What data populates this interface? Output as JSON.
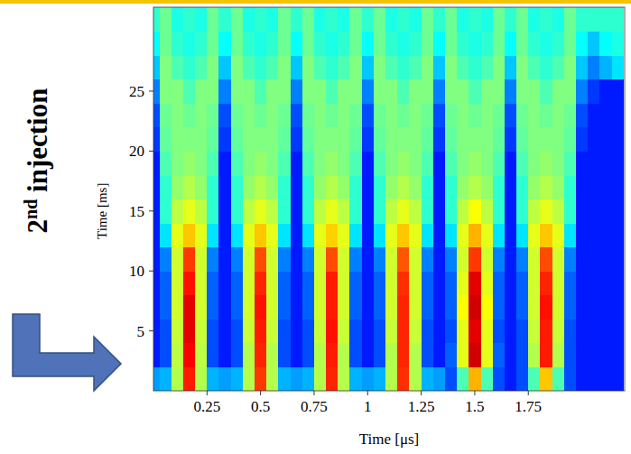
{
  "chart_data": {
    "type": "heatmap",
    "x_label": "Time [μs]",
    "y_label": "Time [ms]",
    "annotation": "2nd injection",
    "xlim": [
      0,
      2.2
    ],
    "ylim": [
      0,
      32
    ],
    "xticks": [
      0.25,
      0.5,
      0.75,
      1,
      1.25,
      1.5,
      1.75
    ],
    "yticks": [
      5,
      10,
      15,
      20,
      25
    ],
    "zlim": [
      0,
      1
    ],
    "x": [
      0,
      0.056,
      0.111,
      0.167,
      0.222,
      0.278,
      0.333,
      0.389,
      0.444,
      0.5,
      0.556,
      0.611,
      0.667,
      0.722,
      0.778,
      0.833,
      0.889,
      0.944,
      1,
      1.056,
      1.111,
      1.167,
      1.222,
      1.278,
      1.333,
      1.389,
      1.444,
      1.5,
      1.556,
      1.611,
      1.667,
      1.722,
      1.778,
      1.833,
      1.889,
      1.944,
      2,
      2.056,
      2.111,
      2.167
    ],
    "y": [
      1,
      3,
      5,
      7,
      9,
      11,
      13,
      15,
      17,
      19,
      21,
      23,
      25,
      27,
      29,
      31
    ],
    "values": [
      [
        0.28,
        0.3,
        0.55,
        0.85,
        0.55,
        0.3,
        0.28,
        0.3,
        0.55,
        0.82,
        0.55,
        0.3,
        0.28,
        0.3,
        0.55,
        0.84,
        0.55,
        0.3,
        0.28,
        0.3,
        0.55,
        0.83,
        0.55,
        0.3,
        0.28,
        0.2,
        0.45,
        0.7,
        0.45,
        0.2,
        0.15,
        0.2,
        0.45,
        0.68,
        0.45,
        0.2,
        0.15,
        0.15,
        0.15,
        0.15
      ],
      [
        0.15,
        0.2,
        0.56,
        0.88,
        0.56,
        0.2,
        0.15,
        0.2,
        0.55,
        0.84,
        0.55,
        0.2,
        0.15,
        0.2,
        0.55,
        0.85,
        0.55,
        0.2,
        0.15,
        0.2,
        0.55,
        0.84,
        0.55,
        0.2,
        0.15,
        0.22,
        0.6,
        0.92,
        0.6,
        0.22,
        0.15,
        0.2,
        0.55,
        0.85,
        0.55,
        0.2,
        0.15,
        0.15,
        0.15,
        0.15
      ],
      [
        0.15,
        0.2,
        0.57,
        0.9,
        0.57,
        0.2,
        0.15,
        0.2,
        0.57,
        0.85,
        0.57,
        0.2,
        0.15,
        0.2,
        0.57,
        0.86,
        0.57,
        0.2,
        0.15,
        0.2,
        0.57,
        0.84,
        0.57,
        0.2,
        0.15,
        0.2,
        0.6,
        0.9,
        0.6,
        0.2,
        0.15,
        0.2,
        0.57,
        0.85,
        0.57,
        0.2,
        0.15,
        0.15,
        0.15,
        0.15
      ],
      [
        0.15,
        0.22,
        0.58,
        0.9,
        0.58,
        0.22,
        0.15,
        0.22,
        0.58,
        0.86,
        0.58,
        0.22,
        0.15,
        0.22,
        0.58,
        0.85,
        0.58,
        0.22,
        0.15,
        0.22,
        0.58,
        0.84,
        0.58,
        0.22,
        0.15,
        0.22,
        0.62,
        0.92,
        0.62,
        0.22,
        0.15,
        0.22,
        0.58,
        0.86,
        0.58,
        0.22,
        0.15,
        0.15,
        0.15,
        0.15
      ],
      [
        0.15,
        0.22,
        0.58,
        0.86,
        0.58,
        0.22,
        0.15,
        0.22,
        0.58,
        0.84,
        0.58,
        0.22,
        0.15,
        0.22,
        0.58,
        0.85,
        0.58,
        0.22,
        0.15,
        0.22,
        0.58,
        0.83,
        0.58,
        0.22,
        0.15,
        0.22,
        0.6,
        0.9,
        0.6,
        0.22,
        0.15,
        0.22,
        0.58,
        0.84,
        0.58,
        0.22,
        0.15,
        0.15,
        0.15,
        0.15
      ],
      [
        0.15,
        0.25,
        0.58,
        0.82,
        0.58,
        0.25,
        0.15,
        0.25,
        0.58,
        0.8,
        0.58,
        0.25,
        0.15,
        0.25,
        0.58,
        0.8,
        0.58,
        0.25,
        0.15,
        0.25,
        0.58,
        0.79,
        0.58,
        0.25,
        0.15,
        0.25,
        0.58,
        0.82,
        0.58,
        0.25,
        0.15,
        0.25,
        0.58,
        0.8,
        0.58,
        0.25,
        0.15,
        0.15,
        0.15,
        0.15
      ],
      [
        0.15,
        0.35,
        0.6,
        0.68,
        0.6,
        0.35,
        0.15,
        0.35,
        0.6,
        0.68,
        0.6,
        0.35,
        0.15,
        0.35,
        0.6,
        0.67,
        0.6,
        0.35,
        0.15,
        0.35,
        0.6,
        0.68,
        0.6,
        0.35,
        0.15,
        0.35,
        0.6,
        0.7,
        0.6,
        0.35,
        0.15,
        0.35,
        0.6,
        0.68,
        0.6,
        0.35,
        0.15,
        0.15,
        0.15,
        0.15
      ],
      [
        0.15,
        0.42,
        0.56,
        0.6,
        0.56,
        0.42,
        0.15,
        0.42,
        0.56,
        0.6,
        0.56,
        0.42,
        0.15,
        0.42,
        0.56,
        0.6,
        0.56,
        0.42,
        0.15,
        0.42,
        0.56,
        0.6,
        0.56,
        0.42,
        0.15,
        0.42,
        0.56,
        0.62,
        0.56,
        0.42,
        0.15,
        0.42,
        0.56,
        0.6,
        0.56,
        0.42,
        0.15,
        0.15,
        0.15,
        0.15
      ],
      [
        0.15,
        0.42,
        0.52,
        0.55,
        0.52,
        0.42,
        0.15,
        0.42,
        0.52,
        0.55,
        0.52,
        0.42,
        0.15,
        0.42,
        0.52,
        0.55,
        0.52,
        0.42,
        0.15,
        0.42,
        0.52,
        0.55,
        0.52,
        0.42,
        0.15,
        0.42,
        0.52,
        0.55,
        0.52,
        0.42,
        0.15,
        0.42,
        0.52,
        0.55,
        0.52,
        0.42,
        0.15,
        0.15,
        0.15,
        0.15
      ],
      [
        0.15,
        0.45,
        0.5,
        0.52,
        0.5,
        0.45,
        0.15,
        0.45,
        0.5,
        0.52,
        0.5,
        0.45,
        0.15,
        0.45,
        0.5,
        0.52,
        0.5,
        0.45,
        0.15,
        0.45,
        0.5,
        0.52,
        0.5,
        0.45,
        0.15,
        0.45,
        0.5,
        0.52,
        0.5,
        0.45,
        0.15,
        0.45,
        0.5,
        0.52,
        0.5,
        0.45,
        0.15,
        0.15,
        0.15,
        0.15
      ],
      [
        0.18,
        0.47,
        0.5,
        0.5,
        0.5,
        0.47,
        0.18,
        0.47,
        0.5,
        0.5,
        0.5,
        0.47,
        0.18,
        0.47,
        0.5,
        0.5,
        0.5,
        0.47,
        0.18,
        0.47,
        0.5,
        0.5,
        0.5,
        0.47,
        0.18,
        0.47,
        0.5,
        0.5,
        0.5,
        0.47,
        0.18,
        0.47,
        0.5,
        0.5,
        0.5,
        0.47,
        0.18,
        0.15,
        0.15,
        0.15
      ],
      [
        0.2,
        0.48,
        0.5,
        0.48,
        0.5,
        0.48,
        0.2,
        0.48,
        0.5,
        0.48,
        0.5,
        0.48,
        0.2,
        0.48,
        0.5,
        0.48,
        0.5,
        0.48,
        0.2,
        0.48,
        0.5,
        0.48,
        0.5,
        0.48,
        0.2,
        0.48,
        0.5,
        0.48,
        0.5,
        0.48,
        0.2,
        0.48,
        0.5,
        0.48,
        0.5,
        0.48,
        0.2,
        0.15,
        0.15,
        0.15
      ],
      [
        0.25,
        0.5,
        0.5,
        0.45,
        0.5,
        0.5,
        0.25,
        0.5,
        0.5,
        0.45,
        0.5,
        0.5,
        0.25,
        0.5,
        0.5,
        0.45,
        0.5,
        0.5,
        0.25,
        0.5,
        0.5,
        0.45,
        0.5,
        0.5,
        0.25,
        0.5,
        0.5,
        0.45,
        0.5,
        0.5,
        0.25,
        0.5,
        0.5,
        0.45,
        0.5,
        0.5,
        0.25,
        0.18,
        0.15,
        0.15
      ],
      [
        0.32,
        0.5,
        0.45,
        0.42,
        0.45,
        0.5,
        0.32,
        0.5,
        0.45,
        0.42,
        0.45,
        0.5,
        0.32,
        0.5,
        0.45,
        0.42,
        0.45,
        0.5,
        0.32,
        0.5,
        0.45,
        0.42,
        0.45,
        0.5,
        0.32,
        0.5,
        0.45,
        0.42,
        0.45,
        0.5,
        0.32,
        0.5,
        0.45,
        0.42,
        0.45,
        0.5,
        0.32,
        0.25,
        0.3,
        0.35
      ],
      [
        0.38,
        0.48,
        0.42,
        0.4,
        0.42,
        0.48,
        0.38,
        0.48,
        0.42,
        0.4,
        0.42,
        0.48,
        0.38,
        0.48,
        0.42,
        0.4,
        0.42,
        0.48,
        0.38,
        0.48,
        0.42,
        0.4,
        0.42,
        0.48,
        0.38,
        0.48,
        0.42,
        0.4,
        0.42,
        0.48,
        0.38,
        0.48,
        0.42,
        0.4,
        0.42,
        0.48,
        0.38,
        0.32,
        0.38,
        0.4
      ],
      [
        0.42,
        0.48,
        0.4,
        0.42,
        0.4,
        0.48,
        0.42,
        0.48,
        0.4,
        0.42,
        0.4,
        0.48,
        0.42,
        0.48,
        0.4,
        0.42,
        0.4,
        0.48,
        0.42,
        0.48,
        0.4,
        0.42,
        0.4,
        0.48,
        0.42,
        0.48,
        0.4,
        0.42,
        0.4,
        0.48,
        0.42,
        0.48,
        0.4,
        0.42,
        0.4,
        0.48,
        0.42,
        0.42,
        0.42,
        0.42
      ]
    ]
  }
}
